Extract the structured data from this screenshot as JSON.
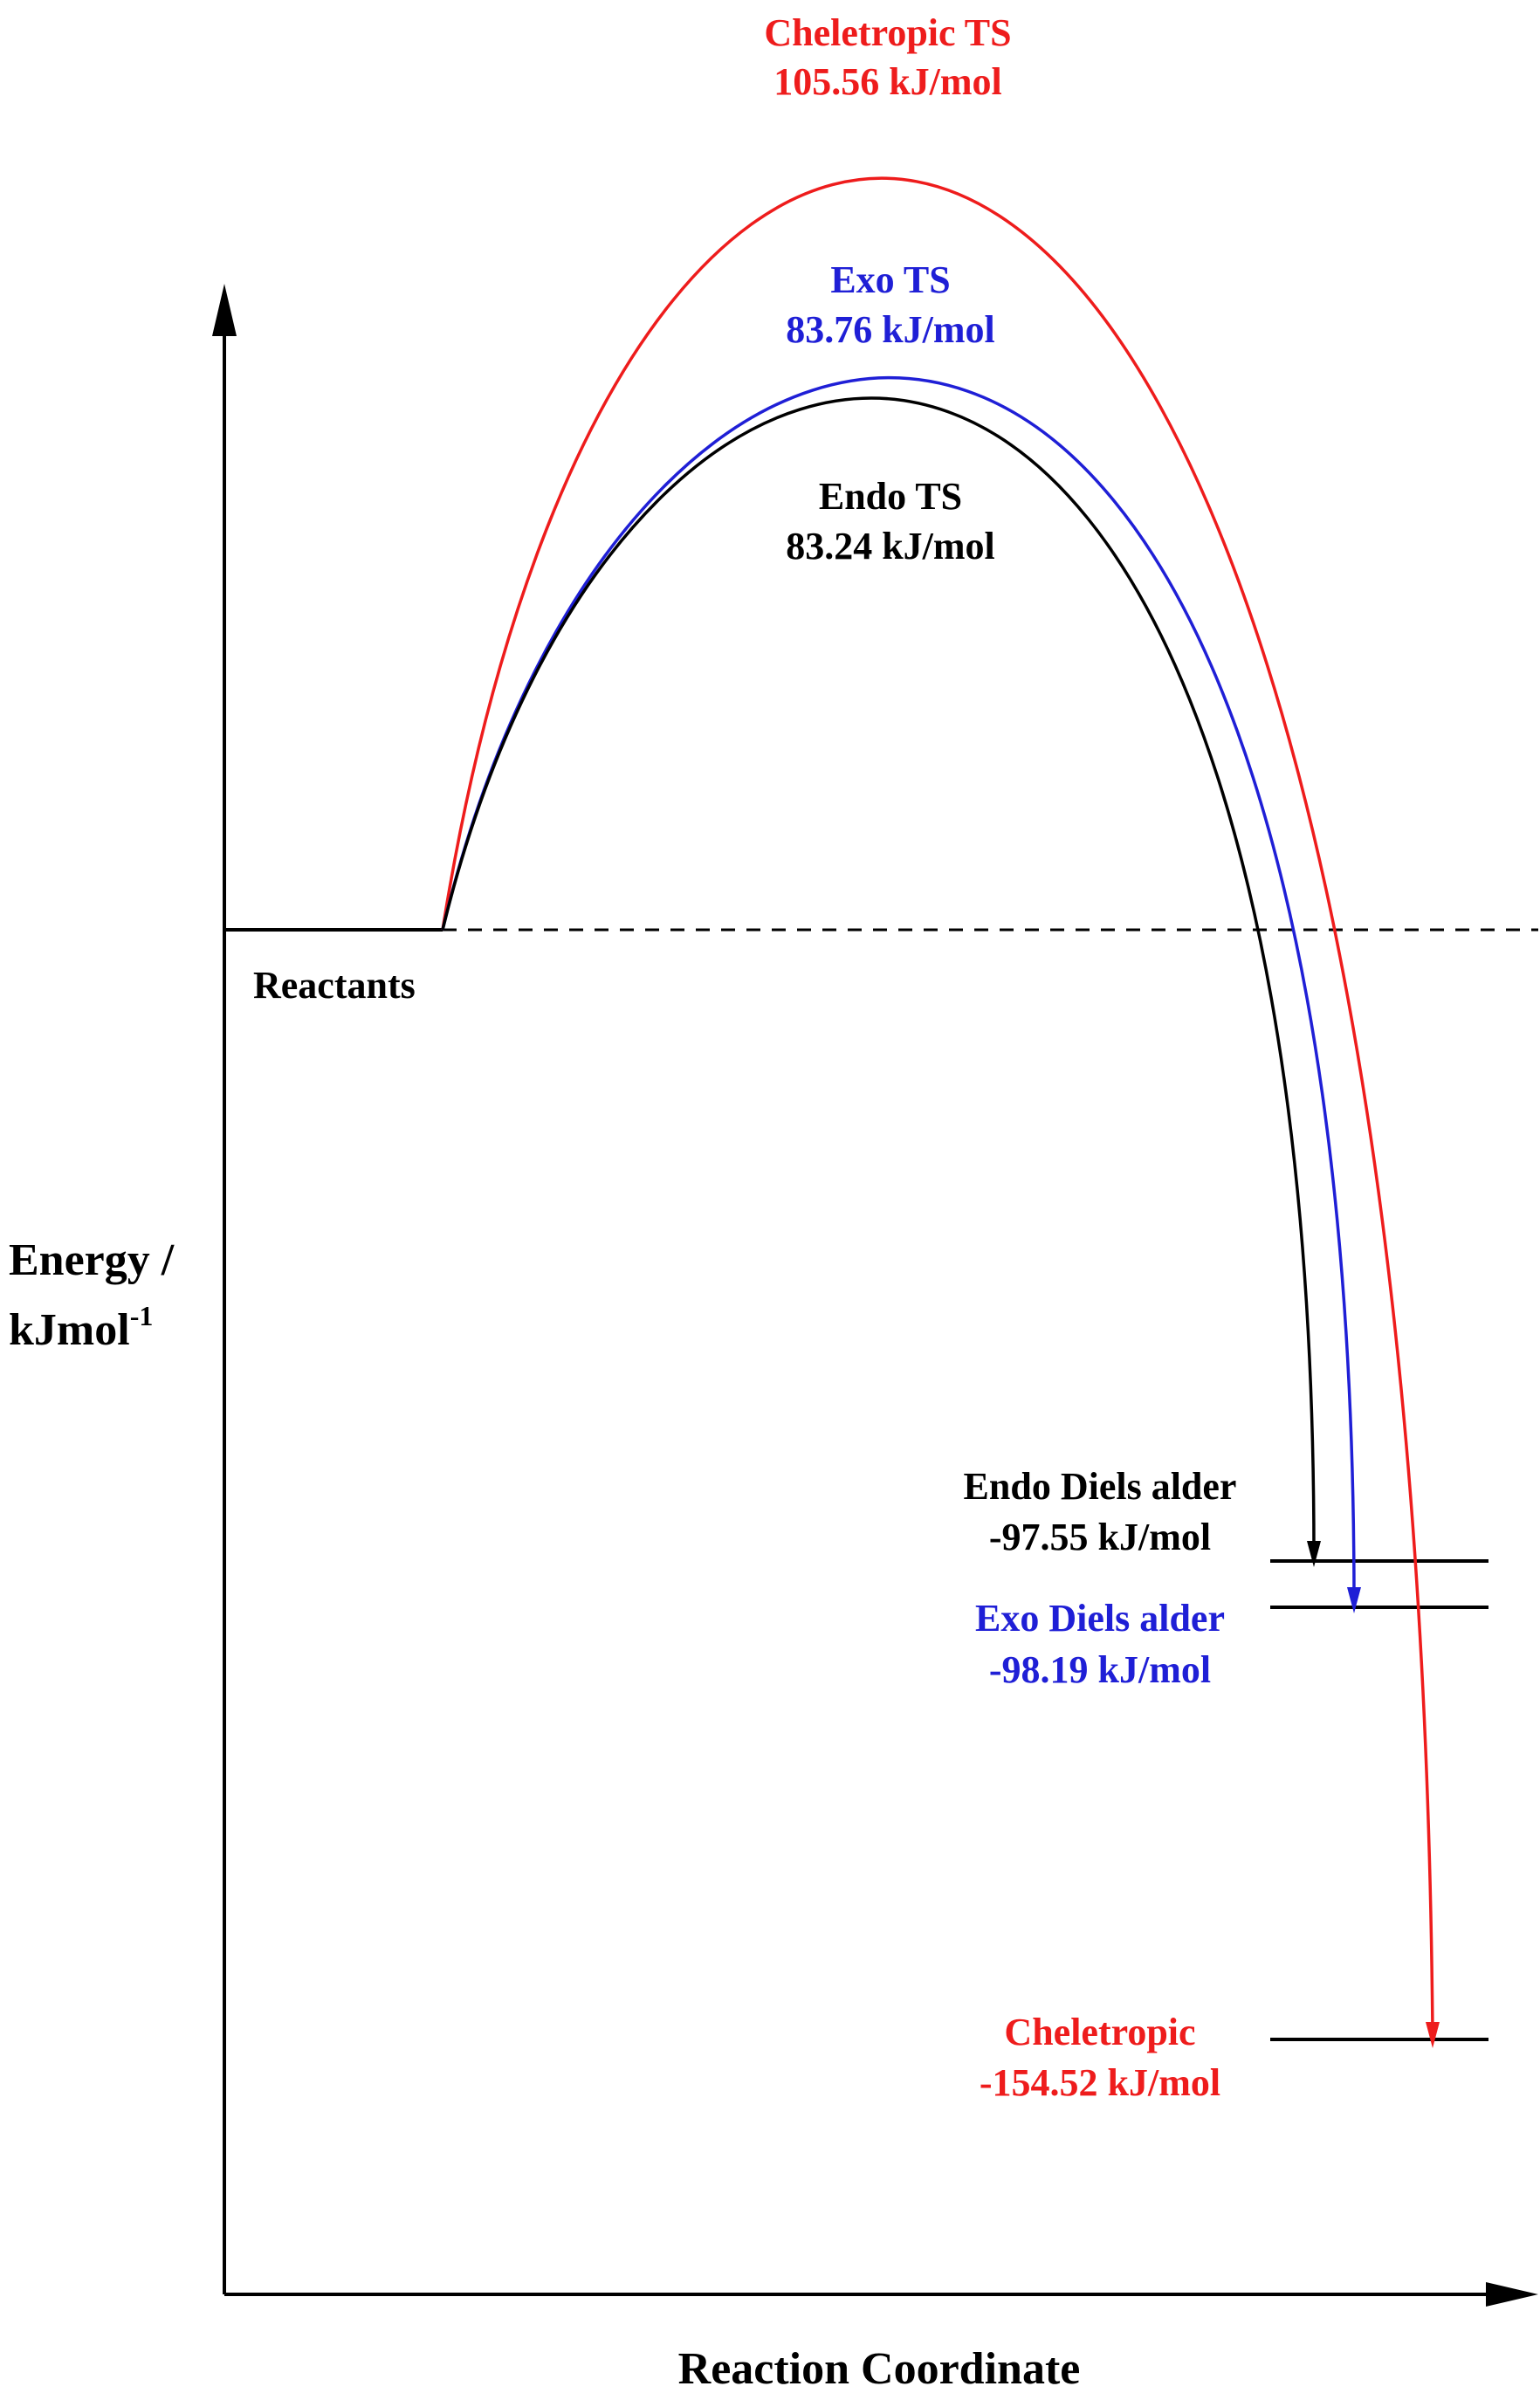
{
  "axes": {
    "y_title_line1": "Energy /",
    "y_title_line2_base": "kJmol",
    "y_title_line2_sup": "-1",
    "x_title": "Reaction Coordinate"
  },
  "reactants": {
    "label": "Reactants",
    "energy": 0
  },
  "transition_states": [
    {
      "key": "cheletropic_ts",
      "name": "Cheletropic TS",
      "value": "105.56 kJ/mol",
      "energy": 105.56,
      "color": "#ee1c1c"
    },
    {
      "key": "exo_ts",
      "name": "Exo TS",
      "value": "83.76 kJ/mol",
      "energy": 83.76,
      "color": "#1f1fd6"
    },
    {
      "key": "endo_ts",
      "name": "Endo TS",
      "value": "83.24 kJ/mol",
      "energy": 83.24,
      "color": "#000000"
    }
  ],
  "products": [
    {
      "key": "endo_da",
      "name": "Endo Diels alder",
      "value": "-97.55 kJ/mol",
      "energy": -97.55,
      "color": "#000000"
    },
    {
      "key": "exo_da",
      "name": "Exo Diels alder",
      "value": "-98.19 kJ/mol",
      "energy": -98.19,
      "color": "#1f1fd6"
    },
    {
      "key": "cheletropic",
      "name": "Cheletropic",
      "value": "-154.52 kJ/mol",
      "energy": -154.52,
      "color": "#ee1c1c"
    }
  ]
}
